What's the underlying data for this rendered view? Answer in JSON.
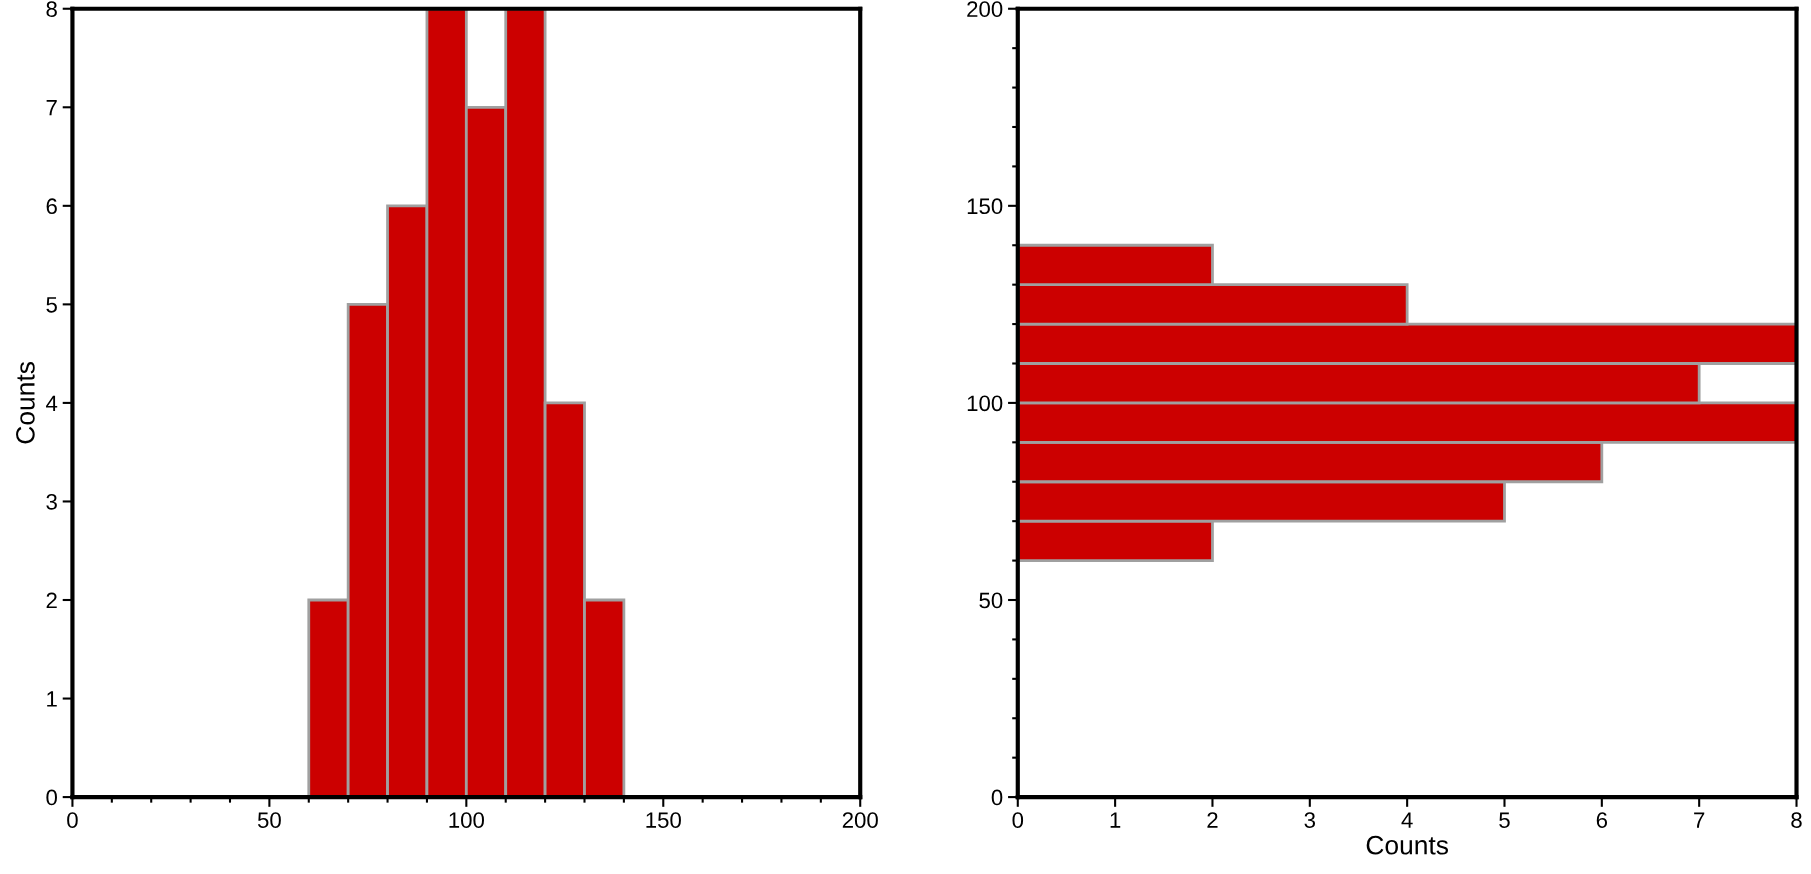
{
  "chart_data": [
    {
      "type": "histogram",
      "bins": [
        60,
        70,
        80,
        90,
        100,
        110,
        120,
        130,
        140
      ],
      "values": [
        2,
        5,
        6,
        8,
        7,
        8,
        4,
        2
      ],
      "color": "#cc0000",
      "ylabel": "Counts",
      "xlim": [
        0,
        200
      ],
      "xticks": [
        0,
        50,
        100,
        150,
        200
      ],
      "ylim": [
        0,
        8
      ],
      "yticks": [
        0,
        1,
        2,
        3,
        4,
        5,
        6,
        7,
        8
      ],
      "grid": false,
      "legend": false
    },
    {
      "type": "histogram",
      "orientation": "horizontal",
      "bins": [
        60,
        70,
        80,
        90,
        100,
        110,
        120,
        130,
        140
      ],
      "values": [
        2,
        5,
        6,
        8,
        7,
        8,
        4,
        2
      ],
      "color": "#cc0000",
      "xlabel": "Counts",
      "xlim": [
        0,
        8
      ],
      "xticks": [
        0,
        1,
        2,
        3,
        4,
        5,
        6,
        7,
        8
      ],
      "ylim": [
        0,
        200
      ],
      "yticks": [
        0,
        50,
        100,
        150,
        200
      ],
      "grid": false,
      "legend": false
    }
  ]
}
